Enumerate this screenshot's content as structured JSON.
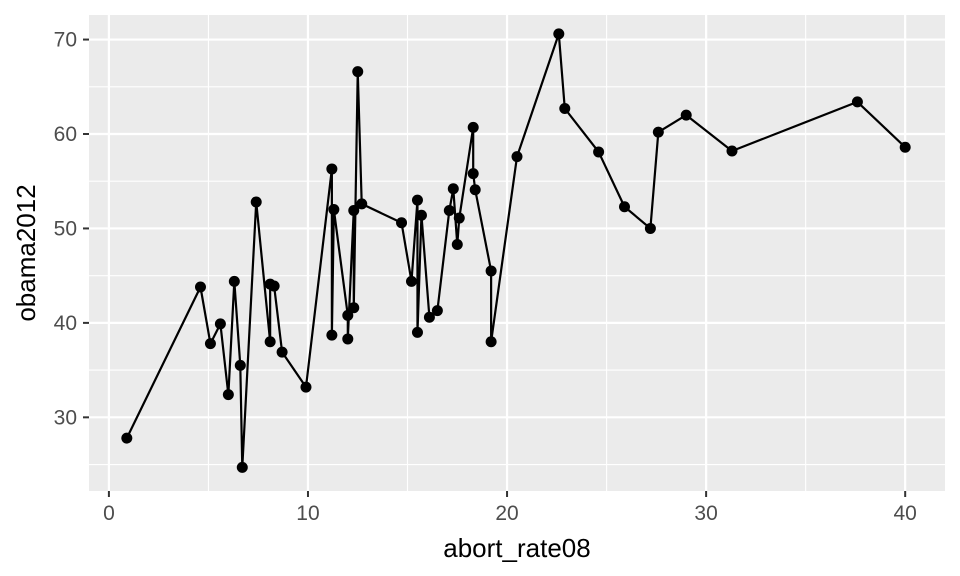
{
  "chart_data": {
    "type": "line",
    "title": "",
    "xlabel": "abort_rate08",
    "ylabel": "obama2012",
    "xlim": [
      -1,
      42
    ],
    "ylim": [
      22.2,
      72.6
    ],
    "x_ticks": [
      0,
      10,
      20,
      30,
      40
    ],
    "y_ticks": [
      30,
      40,
      50,
      60,
      70
    ],
    "x_tick_labels": [
      "0",
      "10",
      "20",
      "30",
      "40"
    ],
    "y_tick_labels": [
      "30",
      "40",
      "50",
      "60",
      "70"
    ],
    "grid": true,
    "legend": "none",
    "colors": {
      "panel": "#ebebeb",
      "grid_major": "#ffffff",
      "line": "#000000",
      "point": "#000000"
    },
    "series": [
      {
        "points": [
          [
            0.9,
            27.8
          ],
          [
            4.6,
            43.8
          ],
          [
            5.1,
            37.8
          ],
          [
            5.6,
            39.9
          ],
          [
            6.0,
            32.4
          ],
          [
            6.3,
            44.4
          ],
          [
            6.6,
            35.5
          ],
          [
            6.7,
            24.7
          ],
          [
            7.4,
            52.8
          ],
          [
            8.1,
            38.0
          ],
          [
            8.1,
            44.1
          ],
          [
            8.3,
            43.9
          ],
          [
            8.7,
            36.9
          ],
          [
            9.9,
            33.2
          ],
          [
            11.2,
            56.3
          ],
          [
            11.2,
            38.7
          ],
          [
            11.3,
            52.0
          ],
          [
            12.0,
            40.8
          ],
          [
            12.0,
            38.3
          ],
          [
            12.3,
            51.9
          ],
          [
            12.3,
            41.6
          ],
          [
            12.5,
            66.6
          ],
          [
            12.7,
            52.6
          ],
          [
            14.7,
            50.6
          ],
          [
            15.2,
            44.4
          ],
          [
            15.5,
            53.0
          ],
          [
            15.5,
            39.0
          ],
          [
            15.7,
            51.4
          ],
          [
            16.1,
            40.6
          ],
          [
            16.5,
            41.3
          ],
          [
            17.1,
            51.9
          ],
          [
            17.3,
            54.2
          ],
          [
            17.5,
            48.3
          ],
          [
            17.6,
            51.1
          ],
          [
            18.3,
            60.7
          ],
          [
            18.3,
            55.8
          ],
          [
            18.4,
            54.1
          ],
          [
            19.2,
            45.5
          ],
          [
            19.2,
            38.0
          ],
          [
            20.5,
            57.6
          ],
          [
            22.6,
            70.6
          ],
          [
            22.9,
            62.7
          ],
          [
            24.6,
            58.1
          ],
          [
            25.9,
            52.3
          ],
          [
            27.2,
            50.0
          ],
          [
            27.6,
            60.2
          ],
          [
            29.0,
            62.0
          ],
          [
            31.3,
            58.2
          ],
          [
            37.6,
            63.4
          ],
          [
            40.0,
            58.6
          ]
        ]
      }
    ]
  }
}
